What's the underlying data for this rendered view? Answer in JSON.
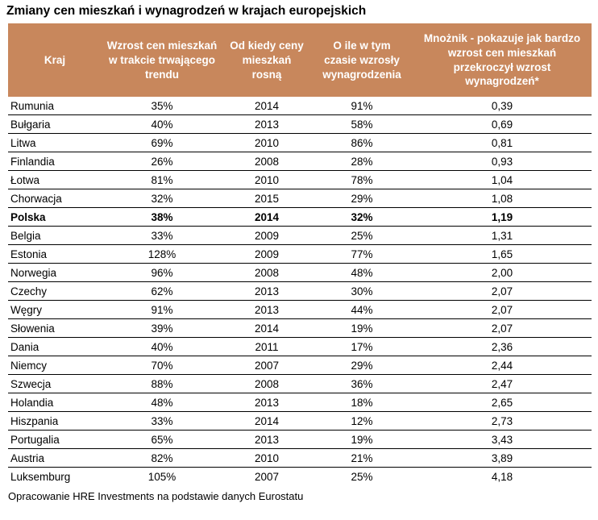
{
  "title": "Zmiany cen mieszkań i wynagrodzeń w krajach europejskich",
  "footer": "Opracowanie HRE Investments na podstawie danych Eurostatu",
  "colors": {
    "header_bg": "#c8875c",
    "header_text": "#ffffff",
    "row_separator": "#000000",
    "body_text": "#000000"
  },
  "chart_data": {
    "type": "table",
    "title": "Zmiany cen mieszkań i wynagrodzeń w krajach europejskich",
    "columns": [
      "Kraj",
      "Wzrost cen mieszkań w trakcie trwającego trendu",
      "Od kiedy ceny mieszkań rosną",
      "O ile w tym czasie wzrosły wynagrodzenia",
      "Mnożnik - pokazuje jak bardzo wzrost cen mieszkań przekroczył wzrost wynagrodzeń*"
    ],
    "rows": [
      [
        "Rumunia",
        "35%",
        "2014",
        "91%",
        "0,39"
      ],
      [
        "Bułgaria",
        "40%",
        "2013",
        "58%",
        "0,69"
      ],
      [
        "Litwa",
        "69%",
        "2010",
        "86%",
        "0,81"
      ],
      [
        "Finlandia",
        "26%",
        "2008",
        "28%",
        "0,93"
      ],
      [
        "Łotwa",
        "81%",
        "2010",
        "78%",
        "1,04"
      ],
      [
        "Chorwacja",
        "32%",
        "2015",
        "29%",
        "1,08"
      ],
      [
        "Polska",
        "38%",
        "2014",
        "32%",
        "1,19"
      ],
      [
        "Belgia",
        "33%",
        "2009",
        "25%",
        "1,31"
      ],
      [
        "Estonia",
        "128%",
        "2009",
        "77%",
        "1,65"
      ],
      [
        "Norwegia",
        "96%",
        "2008",
        "48%",
        "2,00"
      ],
      [
        "Czechy",
        "62%",
        "2013",
        "30%",
        "2,07"
      ],
      [
        "Węgry",
        "91%",
        "2013",
        "44%",
        "2,07"
      ],
      [
        "Słowenia",
        "39%",
        "2014",
        "19%",
        "2,07"
      ],
      [
        "Dania",
        "40%",
        "2011",
        "17%",
        "2,36"
      ],
      [
        "Niemcy",
        "70%",
        "2007",
        "29%",
        "2,44"
      ],
      [
        "Szwecja",
        "88%",
        "2008",
        "36%",
        "2,47"
      ],
      [
        "Holandia",
        "48%",
        "2013",
        "18%",
        "2,65"
      ],
      [
        "Hiszpania",
        "33%",
        "2014",
        "12%",
        "2,73"
      ],
      [
        "Portugalia",
        "65%",
        "2013",
        "19%",
        "3,43"
      ],
      [
        "Austria",
        "82%",
        "2010",
        "21%",
        "3,89"
      ],
      [
        "Luksemburg",
        "105%",
        "2007",
        "25%",
        "4,18"
      ]
    ],
    "highlighted_row": "Polska",
    "source": "Opracowanie HRE Investments na podstawie danych Eurostatu",
    "layout": {
      "header_alignment": "center",
      "country_column_alignment": "left",
      "value_alignment": "center",
      "grid": "horizontal-only"
    }
  }
}
